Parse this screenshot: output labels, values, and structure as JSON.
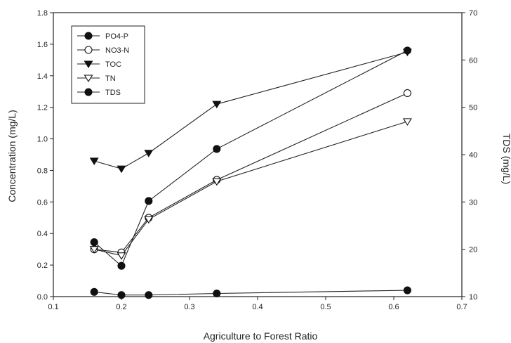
{
  "chart_data": {
    "type": "line",
    "xlabel": "Agriculture to Forest Ratio",
    "ylabel": "Concentration (mg/L)",
    "y2label": "TDS (mg/L)",
    "xlim": [
      0.1,
      0.7
    ],
    "ylim": [
      0,
      1.8
    ],
    "y2lim": [
      10,
      70
    ],
    "x_ticks": [
      "0.1",
      "0.2",
      "0.3",
      "0.4",
      "0.5",
      "0.6",
      "0.7"
    ],
    "y_ticks": [
      "0.0",
      "0.2",
      "0.4",
      "0.6",
      "0.8",
      "1.0",
      "1.2",
      "1.4",
      "1.6",
      "1.8"
    ],
    "y2_ticks": [
      "10",
      "20",
      "30",
      "40",
      "50",
      "60",
      "70"
    ],
    "grid": false,
    "legend_position": "top-left",
    "x": [
      0.16,
      0.2,
      0.24,
      0.34,
      0.62
    ],
    "series": [
      {
        "name": "PO4-P",
        "marker": "filled-circle",
        "axis": "left",
        "values": [
          0.03,
          0.01,
          0.01,
          0.02,
          0.04
        ]
      },
      {
        "name": "NO3-N",
        "marker": "open-circle",
        "axis": "left",
        "values": [
          0.3,
          0.28,
          0.5,
          0.74,
          1.29
        ]
      },
      {
        "name": "TOC",
        "marker": "filled-triangle-down",
        "axis": "left",
        "values": [
          0.86,
          0.81,
          0.91,
          1.22,
          1.55
        ]
      },
      {
        "name": "TN",
        "marker": "open-triangle-down",
        "axis": "left",
        "values": [
          0.3,
          0.26,
          0.49,
          0.73,
          1.11
        ]
      },
      {
        "name": "TDS",
        "marker": "filled-circle",
        "axis": "right",
        "values": [
          21.5,
          16.5,
          30.2,
          41.2,
          62.0
        ]
      }
    ]
  }
}
